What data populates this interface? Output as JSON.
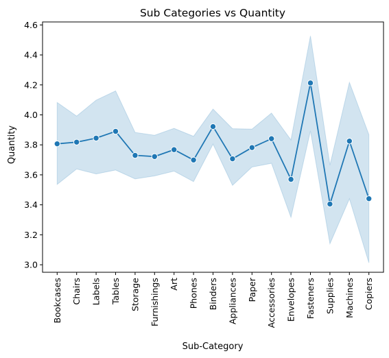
{
  "chart_data": {
    "type": "line",
    "title": "Sub Categories vs Quantity",
    "xlabel": "Sub-Category",
    "ylabel": "Quantity",
    "ylim": [
      2.95,
      4.62
    ],
    "yticks": [
      "3.0",
      "3.2",
      "3.4",
      "3.6",
      "3.8",
      "4.0",
      "4.2",
      "4.4",
      "4.6"
    ],
    "grid": false,
    "legend": "none",
    "categories": [
      "Bookcases",
      "Chairs",
      "Labels",
      "Tables",
      "Storage",
      "Furnishings",
      "Art",
      "Phones",
      "Binders",
      "Appliances",
      "Paper",
      "Accessories",
      "Envelopes",
      "Fasteners",
      "Supplies",
      "Machines",
      "Copiers"
    ],
    "series": [
      {
        "values": [
          3.807,
          3.818,
          3.845,
          3.89,
          3.73,
          3.722,
          3.768,
          3.699,
          3.922,
          3.707,
          3.782,
          3.841,
          3.57,
          4.213,
          3.405,
          3.825,
          3.441
        ],
        "ci_lower": [
          3.536,
          3.639,
          3.606,
          3.632,
          3.573,
          3.593,
          3.625,
          3.555,
          3.805,
          3.53,
          3.652,
          3.677,
          3.316,
          3.893,
          3.14,
          3.44,
          3.013
        ],
        "ci_upper": [
          4.083,
          3.992,
          4.098,
          4.16,
          3.883,
          3.864,
          3.91,
          3.857,
          4.039,
          3.908,
          3.905,
          4.012,
          3.833,
          4.527,
          3.665,
          4.217,
          3.868
        ]
      }
    ],
    "colors": {
      "line": "#1f77b4",
      "band": "#1f77b4",
      "marker_edge": "#ffffff"
    }
  }
}
